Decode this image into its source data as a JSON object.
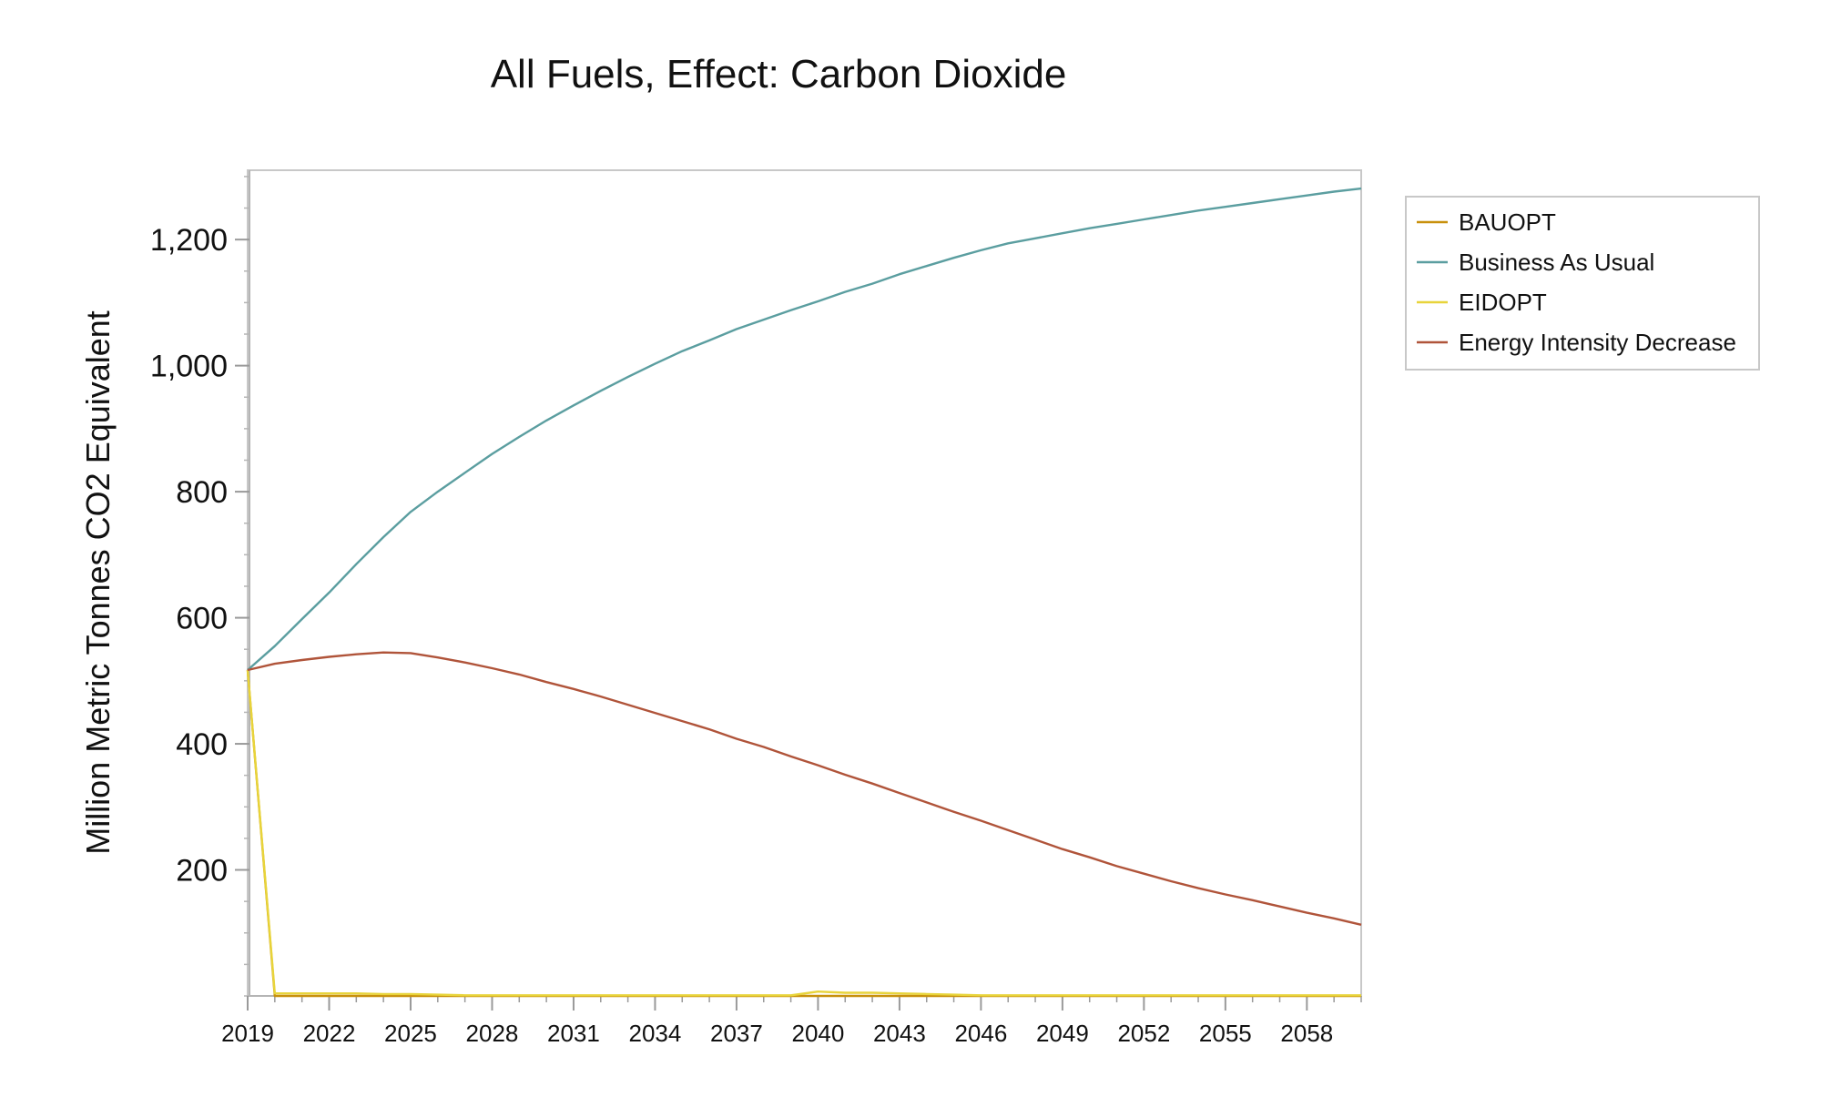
{
  "chart_data": {
    "type": "line",
    "title": "All Fuels, Effect: Carbon Dioxide",
    "xlabel": "",
    "ylabel": "Million Metric Tonnes CO2 Equivalent",
    "xlim": [
      2019,
      2060
    ],
    "ylim": [
      0,
      1310
    ],
    "x_ticks": [
      2019,
      2022,
      2025,
      2028,
      2031,
      2034,
      2037,
      2040,
      2043,
      2046,
      2049,
      2052,
      2055,
      2058
    ],
    "y_ticks": [
      200,
      400,
      600,
      800,
      1000,
      1200
    ],
    "y_tick_labels": [
      "200",
      "400",
      "600",
      "800",
      "1,000",
      "1,200"
    ],
    "grid": false,
    "legend_position": "right",
    "x": [
      2019,
      2020,
      2021,
      2022,
      2023,
      2024,
      2025,
      2026,
      2027,
      2028,
      2029,
      2030,
      2031,
      2032,
      2033,
      2034,
      2035,
      2036,
      2037,
      2038,
      2039,
      2040,
      2041,
      2042,
      2043,
      2044,
      2045,
      2046,
      2047,
      2048,
      2049,
      2050,
      2051,
      2052,
      2053,
      2054,
      2055,
      2056,
      2057,
      2058,
      2059,
      2060
    ],
    "series": [
      {
        "name": "BAUOPT",
        "color": "#C8900C",
        "values": [
          517,
          0,
          0,
          0,
          0,
          0,
          0,
          0,
          0,
          0,
          0,
          0,
          0,
          0,
          0,
          0,
          0,
          0,
          0,
          0,
          0,
          0,
          0,
          0,
          0,
          0,
          0,
          0,
          0,
          0,
          0,
          0,
          0,
          0,
          0,
          0,
          0,
          0,
          0,
          0,
          0,
          0
        ]
      },
      {
        "name": "Business As Usual",
        "color": "#5B9EA0",
        "values": [
          517,
          555,
          598,
          640,
          685,
          728,
          768,
          800,
          830,
          860,
          887,
          913,
          937,
          960,
          982,
          1003,
          1023,
          1040,
          1058,
          1073,
          1088,
          1102,
          1117,
          1130,
          1145,
          1158,
          1171,
          1183,
          1194,
          1202,
          1210,
          1218,
          1225,
          1232,
          1239,
          1246,
          1252,
          1258,
          1264,
          1270,
          1276,
          1281
        ]
      },
      {
        "name": "EIDOPT",
        "color": "#E8D43A",
        "values": [
          517,
          4,
          4,
          4,
          4,
          3,
          3,
          2,
          1,
          1,
          1,
          1,
          1,
          1,
          1,
          1,
          1,
          1,
          1,
          1,
          1,
          7,
          5,
          5,
          4,
          3,
          2,
          1,
          1,
          1,
          1,
          1,
          1,
          1,
          1,
          1,
          1,
          1,
          1,
          1,
          1,
          1
        ]
      },
      {
        "name": "Energy Intensity Decrease",
        "color": "#B0543A",
        "values": [
          517,
          527,
          533,
          538,
          542,
          545,
          544,
          537,
          529,
          520,
          510,
          498,
          487,
          475,
          462,
          449,
          436,
          423,
          408,
          395,
          380,
          366,
          351,
          337,
          322,
          307,
          292,
          278,
          263,
          248,
          233,
          220,
          206,
          194,
          182,
          171,
          161,
          152,
          142,
          132,
          123,
          113
        ]
      }
    ]
  }
}
